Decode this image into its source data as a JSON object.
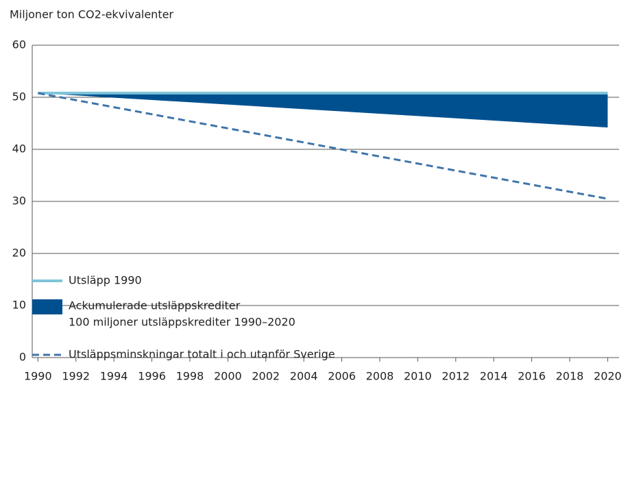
{
  "chart_data": {
    "type": "line",
    "title": "Miljoner ton CO2-ekvivalenter",
    "x": [
      1990,
      2020
    ],
    "xlim": [
      1989.7,
      2020.6
    ],
    "xticks": [
      1990,
      1992,
      1994,
      1996,
      1998,
      2000,
      2002,
      2004,
      2006,
      2008,
      2010,
      2012,
      2014,
      2016,
      2018,
      2020
    ],
    "ylim": [
      0,
      60
    ],
    "yticks": [
      0,
      10,
      20,
      30,
      40,
      50,
      60
    ],
    "grid": true,
    "series": [
      {
        "name": "Utsläpp 1990",
        "color": "#7fc4d8",
        "style": "solid",
        "values": [
          50.8,
          50.8
        ]
      },
      {
        "name": "Ackumulerade utsläppskrediter",
        "description": "100 miljoner utsläppskrediter 1990–2020",
        "color": "#00508f",
        "style": "area",
        "values": [
          50.8,
          44.2
        ]
      },
      {
        "name": "Utsläppsminskningar totalt i och utanför Sverige",
        "color": "#3f74aa",
        "style": "dashed",
        "values": [
          50.8,
          30.5
        ]
      }
    ]
  }
}
